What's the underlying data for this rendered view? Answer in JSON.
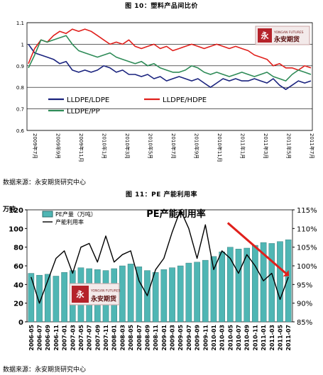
{
  "figure1": {
    "caption": "图 10：塑料产品间比价",
    "source": "数据来源：永安期货研究中心",
    "logo": {
      "en": "YONGAN FUTURES",
      "cn": "永安期货",
      "mark": "永"
    },
    "chart_data": {
      "type": "line",
      "xlabels": [
        "2009年7月",
        "2009年9月",
        "2009年11月",
        "2010年1月",
        "2010年3月",
        "2010年5月",
        "2010年7月",
        "2010年9月",
        "2010年11月",
        "2011年1月",
        "2011年3月",
        "2011年5月",
        "2011年7月"
      ],
      "y_ticks": [
        "0.6",
        "0.7",
        "0.8",
        "0.9",
        "1",
        "1.1"
      ],
      "ylim": [
        0.6,
        1.1
      ],
      "grid": "horizontal",
      "legend": [
        "LLDPE/LDPE",
        "LLDPE/HDPE",
        "LLDPE/PP"
      ],
      "series": [
        {
          "name": "LLDPE/LDPE",
          "color": "#1a237e",
          "values": [
            1.0,
            0.96,
            0.95,
            0.94,
            0.93,
            0.91,
            0.92,
            0.88,
            0.87,
            0.88,
            0.87,
            0.88,
            0.9,
            0.89,
            0.87,
            0.88,
            0.86,
            0.86,
            0.85,
            0.86,
            0.84,
            0.85,
            0.83,
            0.84,
            0.85,
            0.84,
            0.83,
            0.84,
            0.82,
            0.8,
            0.82,
            0.84,
            0.83,
            0.84,
            0.83,
            0.83,
            0.84,
            0.83,
            0.82,
            0.84,
            0.81,
            0.79,
            0.81,
            0.83,
            0.82,
            0.83
          ]
        },
        {
          "name": "LLDPE/HDPE",
          "color": "#e0201c",
          "values": [
            0.91,
            0.98,
            1.02,
            1.01,
            1.04,
            1.06,
            1.05,
            1.07,
            1.06,
            1.07,
            1.06,
            1.04,
            1.02,
            1.0,
            1.01,
            1.0,
            1.02,
            0.99,
            0.98,
            0.99,
            1.0,
            0.98,
            0.99,
            0.97,
            0.98,
            0.99,
            1.0,
            0.99,
            0.98,
            0.99,
            1.0,
            0.99,
            0.98,
            0.99,
            0.98,
            0.97,
            0.95,
            0.94,
            0.93,
            0.9,
            0.91,
            0.89,
            0.89,
            0.88,
            0.9,
            0.89
          ]
        },
        {
          "name": "LLDPE/PP",
          "color": "#2e8b57",
          "values": [
            0.89,
            0.95,
            1.02,
            1.01,
            1.02,
            1.03,
            1.04,
            1.0,
            0.97,
            0.96,
            0.95,
            0.94,
            0.95,
            0.96,
            0.94,
            0.93,
            0.92,
            0.91,
            0.92,
            0.9,
            0.91,
            0.89,
            0.88,
            0.87,
            0.87,
            0.88,
            0.9,
            0.89,
            0.87,
            0.86,
            0.87,
            0.86,
            0.85,
            0.86,
            0.87,
            0.86,
            0.85,
            0.86,
            0.87,
            0.85,
            0.84,
            0.83,
            0.86,
            0.88,
            0.87,
            0.86
          ]
        }
      ]
    }
  },
  "figure2": {
    "caption": "图 11：PE 产能利用率",
    "title": "PE产能利用率",
    "source": "数据来源：永安期货研究中心",
    "logo": {
      "en": "YONGAN FUTURES",
      "cn": "永安期货",
      "mark": "永"
    },
    "left_axis_label": "万吨",
    "chart_data": {
      "type": "bar+line",
      "categories": [
        "2006-05",
        "2006-07",
        "2006-09",
        "2006-11",
        "2007-01",
        "2007-03",
        "2007-05",
        "2007-07",
        "2007-09",
        "2007-11",
        "2008-01",
        "2008-03",
        "2008-05",
        "2008-07",
        "2008-09",
        "2008-11",
        "2009-01",
        "2009-03",
        "2009-05",
        "2009-07",
        "2009-09",
        "2009-11",
        "2010-01",
        "2010-03",
        "2010-05",
        "2010-07",
        "2010-09",
        "2010-11",
        "2011-01",
        "2011-03",
        "2011-05",
        "2011-07"
      ],
      "left_ticks": [
        "0",
        "20",
        "40",
        "60",
        "80",
        "100",
        "120"
      ],
      "right_ticks": [
        "85%",
        "90%",
        "95%",
        "100%",
        "105%",
        "110%",
        "115%"
      ],
      "ylim_left": [
        0,
        120
      ],
      "ylim_right": [
        85,
        115
      ],
      "legend": [
        "PE产量（万吨）",
        "产能利用率"
      ],
      "series": [
        {
          "name": "PE产量（万吨）",
          "axis": "left",
          "color": "#4fb6b4",
          "values": [
            52,
            50,
            51,
            49,
            53,
            55,
            58,
            57,
            56,
            55,
            57,
            60,
            62,
            59,
            55,
            53,
            56,
            58,
            60,
            63,
            64,
            66,
            70,
            75,
            80,
            78,
            79,
            82,
            85,
            84,
            86,
            88
          ]
        },
        {
          "name": "产能利用率",
          "axis": "right",
          "color": "#000000",
          "values": [
            97,
            90,
            96,
            102,
            104,
            98,
            105,
            106,
            101,
            108,
            101,
            103,
            104,
            96,
            92,
            99,
            102,
            109,
            115,
            110,
            102,
            111,
            99,
            104,
            102,
            98,
            103,
            100,
            96,
            98,
            91,
            97
          ]
        }
      ],
      "annotation": {
        "type": "trend-arrow",
        "color": "#e0201c"
      }
    }
  }
}
